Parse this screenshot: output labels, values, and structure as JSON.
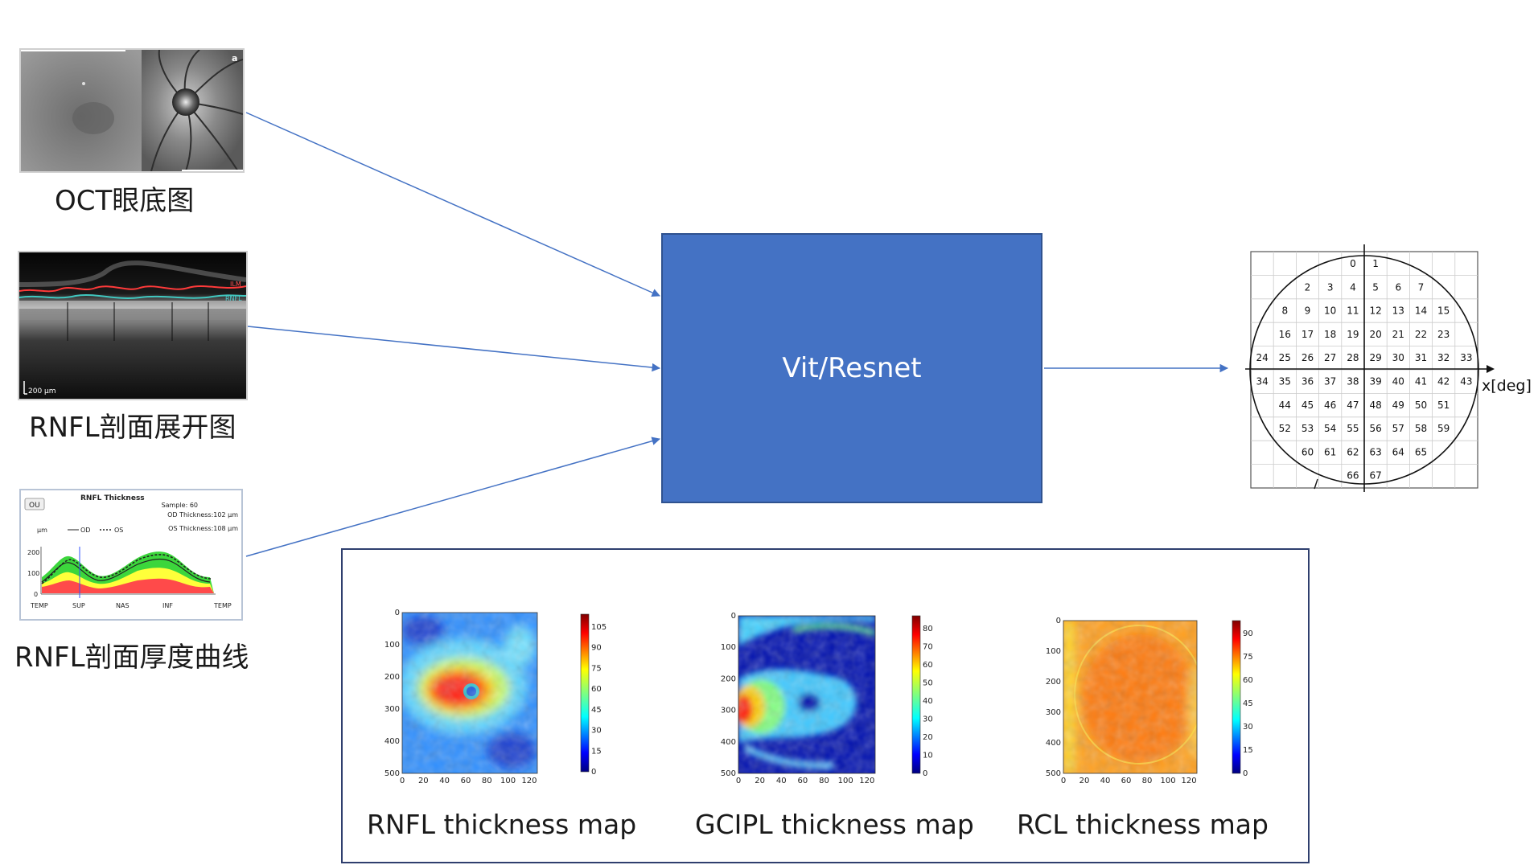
{
  "inputs": {
    "fundus": {
      "caption": "OCT眼底图",
      "corner_label": "a"
    },
    "bscan": {
      "caption": "RNFL剖面展开图",
      "scale_label": "200 µm",
      "ilm_label": "ILM",
      "rnfl_label": "RNFL"
    },
    "curve": {
      "caption": "RNFL剖面厚度曲线",
      "title": "RNFL Thickness",
      "button": "OU",
      "sample": "Sample: 60",
      "od_thickness": "OD Thickness:102 µm",
      "os_thickness": "OS Thickness:108 µm",
      "unit": "µm",
      "legend_od": "OD",
      "legend_os": "OS",
      "y_ticks": [
        "200",
        "100",
        "0"
      ],
      "x_ticks": [
        "TEMP",
        "SUP",
        "NAS",
        "INF",
        "TEMP"
      ]
    }
  },
  "model": {
    "label": "Vit/Resnet"
  },
  "output": {
    "axis_label": "x[deg]",
    "rows": [
      [
        0,
        1
      ],
      [
        2,
        3,
        4,
        5,
        6,
        7
      ],
      [
        8,
        9,
        10,
        11,
        12,
        13,
        14,
        15
      ],
      [
        16,
        17,
        18,
        19,
        20,
        21,
        22,
        23
      ],
      [
        24,
        25,
        26,
        27,
        28,
        29,
        30,
        31,
        32,
        33
      ],
      [
        34,
        35,
        36,
        37,
        38,
        39,
        40,
        41,
        42,
        43
      ],
      [
        44,
        45,
        46,
        47,
        48,
        49,
        50,
        51
      ],
      [
        52,
        53,
        54,
        55,
        56,
        57,
        58,
        59
      ],
      [
        60,
        61,
        62,
        63,
        64,
        65
      ],
      [
        66,
        67
      ]
    ]
  },
  "maps": [
    {
      "caption": "RNFL thickness map",
      "x_ticks": [
        "0",
        "20",
        "40",
        "60",
        "80",
        "100",
        "120"
      ],
      "y_ticks": [
        "0",
        "100",
        "200",
        "300",
        "400",
        "500"
      ],
      "colorbar_ticks": [
        "105",
        "90",
        "75",
        "60",
        "45",
        "30",
        "15",
        "0"
      ]
    },
    {
      "caption": "GCIPL thickness map",
      "x_ticks": [
        "0",
        "20",
        "40",
        "60",
        "80",
        "100",
        "120"
      ],
      "y_ticks": [
        "0",
        "100",
        "200",
        "300",
        "400",
        "500"
      ],
      "colorbar_ticks": [
        "80",
        "70",
        "60",
        "50",
        "40",
        "30",
        "20",
        "10",
        "0"
      ]
    },
    {
      "caption": "RCL thickness map",
      "x_ticks": [
        "0",
        "20",
        "40",
        "60",
        "80",
        "100",
        "120"
      ],
      "y_ticks": [
        "0",
        "100",
        "200",
        "300",
        "400",
        "500"
      ],
      "colorbar_ticks": [
        "90",
        "75",
        "60",
        "45",
        "30",
        "15",
        "0"
      ]
    }
  ]
}
